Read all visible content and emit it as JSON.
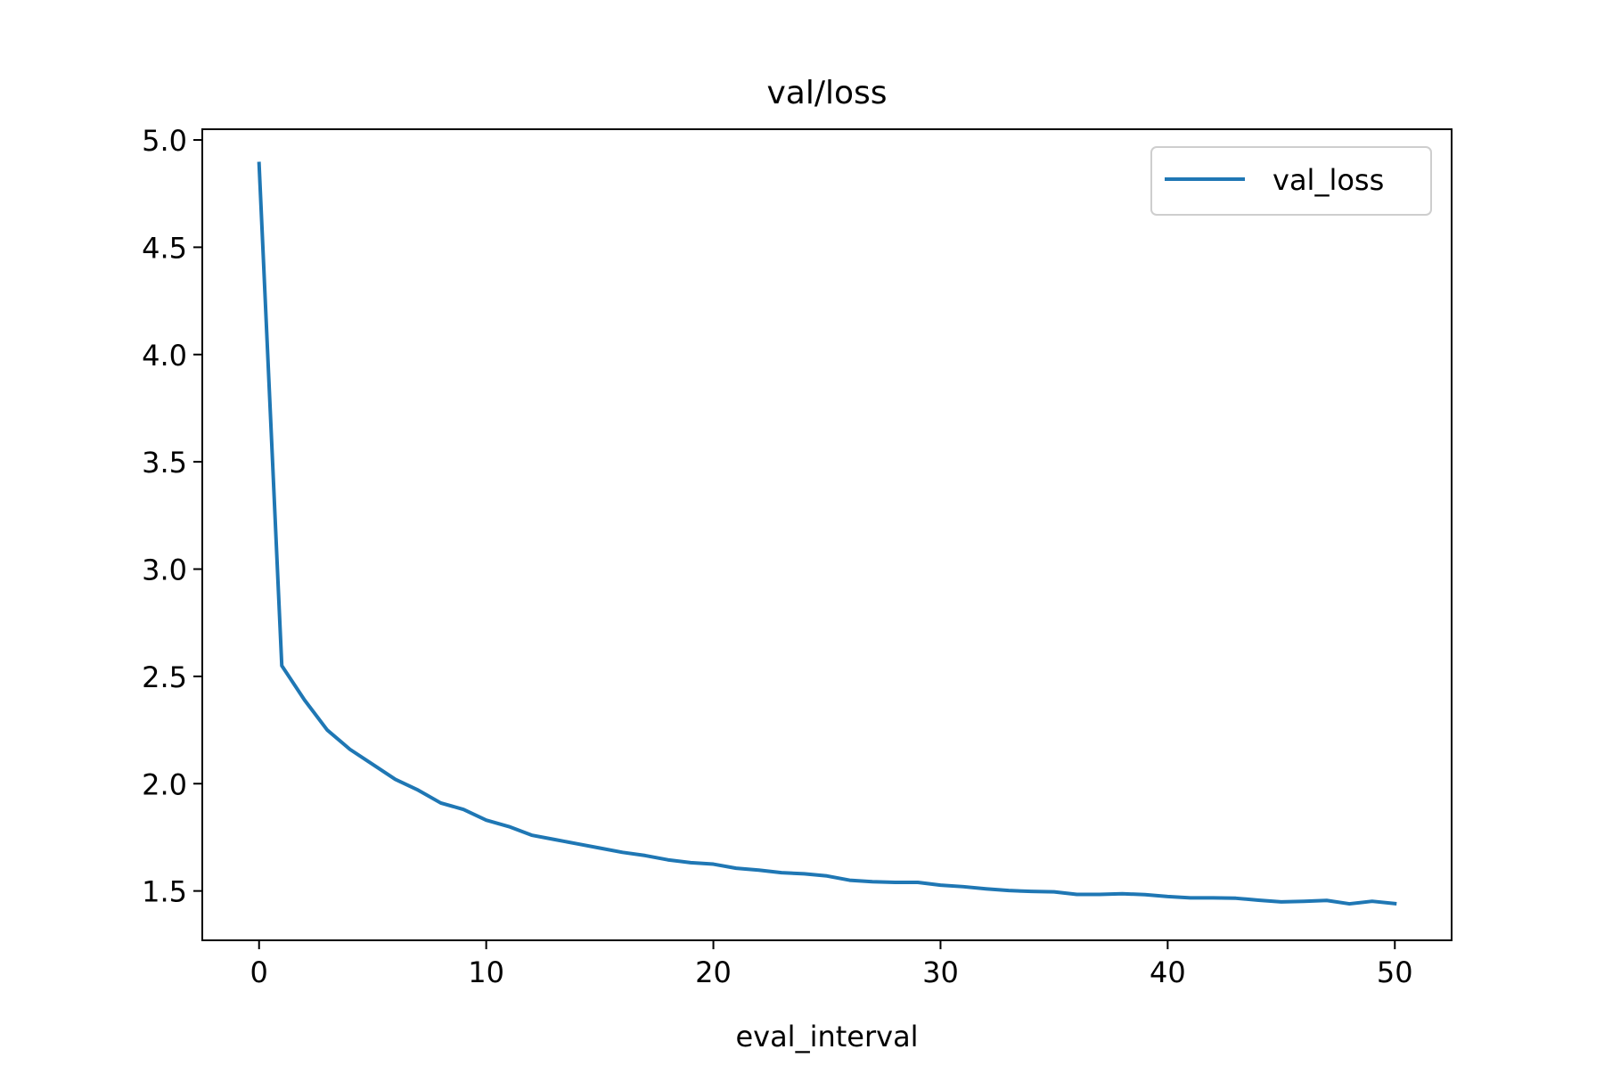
{
  "chart_data": {
    "type": "line",
    "title": "val/loss",
    "xlabel": "eval_interval",
    "ylabel": "",
    "xlim": [
      -2.5,
      52.5
    ],
    "ylim": [
      1.27,
      5.05
    ],
    "x_ticks": [
      0,
      10,
      20,
      30,
      40,
      50
    ],
    "x_tick_labels": [
      "0",
      "10",
      "20",
      "30",
      "40",
      "50"
    ],
    "y_ticks": [
      1.5,
      2.0,
      2.5,
      3.0,
      3.5,
      4.0,
      4.5,
      5.0
    ],
    "y_tick_labels": [
      "1.5",
      "2.0",
      "2.5",
      "3.0",
      "3.5",
      "4.0",
      "4.5",
      "5.0"
    ],
    "grid": false,
    "legend_position": "top-right",
    "series": [
      {
        "name": "val_loss",
        "color": "#1f77b4",
        "x": [
          0,
          1,
          2,
          3,
          4,
          5,
          6,
          7,
          8,
          9,
          10,
          11,
          12,
          13,
          14,
          15,
          16,
          17,
          18,
          19,
          20,
          21,
          22,
          23,
          24,
          25,
          26,
          27,
          28,
          29,
          30,
          31,
          32,
          33,
          34,
          35,
          36,
          37,
          38,
          39,
          40,
          41,
          42,
          43,
          44,
          45,
          46,
          47,
          48,
          49,
          50
        ],
        "y": [
          4.89,
          2.55,
          2.39,
          2.25,
          2.16,
          2.09,
          2.02,
          1.97,
          1.91,
          1.88,
          1.83,
          1.8,
          1.76,
          1.74,
          1.72,
          1.7,
          1.68,
          1.665,
          1.645,
          1.632,
          1.625,
          1.606,
          1.597,
          1.585,
          1.58,
          1.57,
          1.55,
          1.543,
          1.54,
          1.54,
          1.527,
          1.52,
          1.51,
          1.502,
          1.498,
          1.496,
          1.484,
          1.484,
          1.487,
          1.483,
          1.474,
          1.468,
          1.468,
          1.466,
          1.457,
          1.449,
          1.452,
          1.456,
          1.44,
          1.452,
          1.441
        ]
      }
    ]
  }
}
